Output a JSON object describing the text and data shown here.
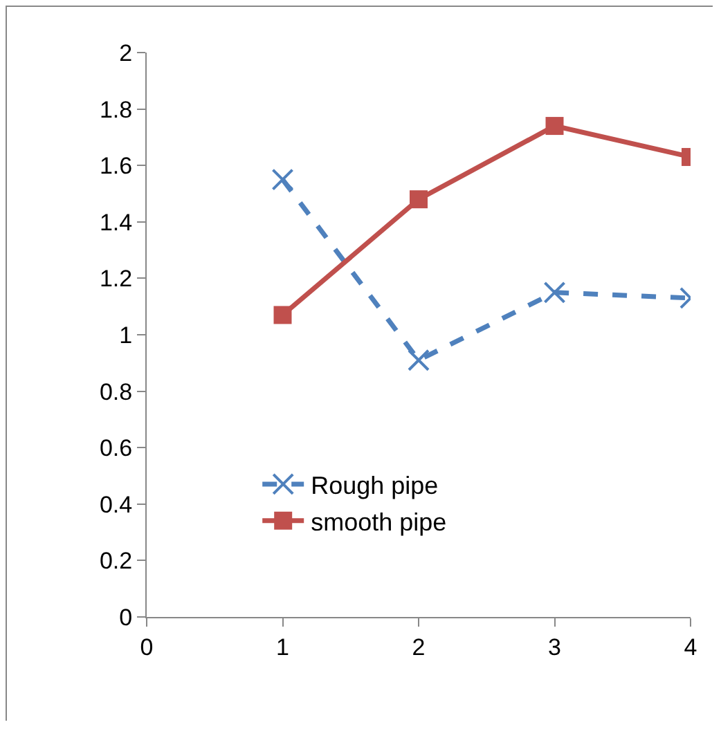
{
  "chart_data": {
    "type": "line",
    "x": [
      1,
      2,
      3,
      4
    ],
    "series": [
      {
        "name": "Rough pipe",
        "color": "#4f81bd",
        "values": [
          1.55,
          0.91,
          1.15,
          1.13
        ],
        "marker": "cross",
        "line_style": "dashed"
      },
      {
        "name": "smooth pipe",
        "color": "#c0504d",
        "values": [
          1.07,
          1.48,
          1.74,
          1.63
        ],
        "marker": "square",
        "line_style": "solid"
      }
    ],
    "xlim": [
      0,
      4
    ],
    "xticks": [
      0,
      1,
      2,
      3,
      4
    ],
    "ylim": [
      0,
      2
    ],
    "yticks": [
      0,
      0.2,
      0.4,
      0.6,
      0.8,
      1,
      1.2,
      1.4,
      1.6,
      1.8,
      2
    ],
    "grid": false,
    "legend": "left"
  }
}
